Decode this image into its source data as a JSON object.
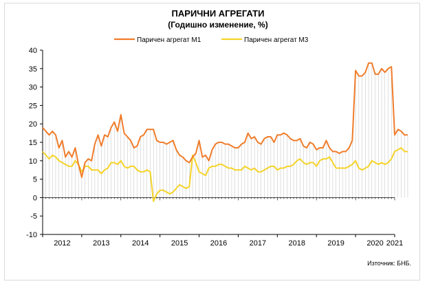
{
  "chart_data": {
    "type": "line",
    "title": "ПАРИЧНИ АГРЕГАТИ",
    "subtitle": "(Годишно изменение, %)",
    "source": "Източник: БНБ.",
    "ylim": [
      -10,
      40
    ],
    "yticks": [
      -10,
      -5,
      0,
      5,
      10,
      15,
      20,
      25,
      30,
      35,
      40
    ],
    "xlim": [
      2012,
      2021
    ],
    "xtick_labels": [
      "2012",
      "2013",
      "2014",
      "2015",
      "2016",
      "2017",
      "2018",
      "2019",
      "2020",
      "2021"
    ],
    "legend_position": "top",
    "grid": false,
    "colors": {
      "m1": "#f07c2a",
      "m3": "#f5d327",
      "axis": "#000000",
      "drop_lines": "#bfbfbf"
    },
    "start": {
      "year": 2012,
      "month": 1
    },
    "series": [
      {
        "name": "Паричен агрегат М1",
        "key": "m1",
        "values": [
          19.0,
          18.0,
          17.0,
          18.0,
          17.0,
          13.5,
          15.5,
          11.0,
          12.5,
          11.0,
          13.5,
          9.0,
          5.5,
          9.5,
          10.5,
          10.0,
          14.5,
          17.0,
          14.0,
          17.0,
          16.5,
          19.0,
          20.5,
          18.0,
          22.5,
          17.5,
          16.5,
          15.5,
          13.5,
          14.0,
          16.5,
          17.0,
          18.5,
          18.5,
          18.5,
          15.5,
          15.0,
          15.0,
          14.5,
          15.0,
          15.5,
          13.0,
          11.5,
          11.0,
          10.0,
          9.5,
          11.0,
          12.0,
          15.5,
          11.0,
          11.5,
          10.0,
          13.0,
          14.5,
          15.0,
          15.0,
          14.5,
          14.5,
          14.0,
          13.5,
          13.5,
          14.5,
          15.0,
          17.5,
          16.0,
          16.5,
          15.0,
          14.5,
          16.0,
          16.5,
          16.5,
          15.0,
          17.0,
          17.0,
          17.5,
          17.0,
          16.0,
          15.5,
          15.5,
          16.0,
          14.0,
          13.5,
          15.0,
          14.5,
          13.0,
          13.5,
          13.5,
          15.5,
          13.5,
          12.5,
          12.5,
          12.0,
          12.5,
          12.5,
          13.5,
          15.5,
          34.5,
          33.0,
          33.0,
          34.0,
          36.5,
          36.5,
          33.5,
          33.5,
          35.0,
          34.0,
          35.0,
          35.5,
          17.0,
          18.5,
          18.0,
          17.0,
          17.0
        ]
      },
      {
        "name": "Паричен агрегат М3",
        "key": "m3",
        "values": [
          12.5,
          11.5,
          10.5,
          11.5,
          11.0,
          10.0,
          9.5,
          9.0,
          8.5,
          8.5,
          10.0,
          9.0,
          7.0,
          8.5,
          8.5,
          7.5,
          7.5,
          7.5,
          6.5,
          7.5,
          8.0,
          9.5,
          9.5,
          9.0,
          10.0,
          8.5,
          8.0,
          8.5,
          8.5,
          7.5,
          7.0,
          7.0,
          7.5,
          7.0,
          -1.0,
          1.0,
          2.0,
          2.0,
          1.5,
          1.0,
          1.5,
          2.5,
          3.5,
          3.0,
          2.5,
          3.0,
          11.5,
          9.5,
          7.0,
          6.5,
          6.0,
          8.0,
          8.5,
          8.5,
          9.0,
          9.0,
          8.5,
          8.0,
          8.0,
          7.5,
          7.5,
          7.5,
          8.5,
          8.0,
          7.5,
          8.0,
          7.0,
          7.0,
          7.5,
          8.0,
          8.5,
          8.5,
          7.5,
          8.0,
          8.0,
          8.5,
          8.5,
          9.0,
          10.0,
          10.5,
          9.5,
          9.0,
          9.5,
          9.5,
          8.5,
          10.0,
          10.5,
          10.5,
          11.0,
          9.5,
          8.0,
          8.0,
          8.0,
          8.0,
          8.5,
          9.0,
          10.0,
          8.0,
          7.5,
          8.0,
          8.5,
          10.0,
          9.5,
          9.0,
          9.5,
          9.0,
          9.5,
          10.5,
          12.5,
          13.0,
          13.5,
          12.5,
          12.5
        ]
      }
    ]
  }
}
